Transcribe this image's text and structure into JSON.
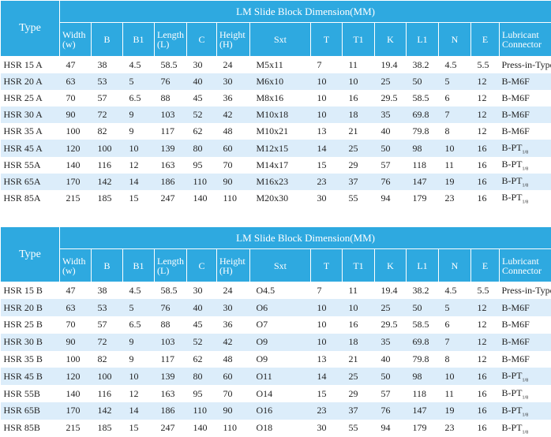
{
  "title": "LM Slide Block Dimension(MM)",
  "columns": [
    "Type",
    [
      "Width",
      "(w)"
    ],
    "B",
    "B1",
    [
      "Length",
      "(L)"
    ],
    "C",
    [
      "Height",
      "(H)"
    ],
    "Sxt",
    "T",
    "T1",
    "K",
    "L1",
    "N",
    "E",
    [
      "Lubricant",
      "Connector"
    ]
  ],
  "tables": [
    {
      "rows": [
        [
          "HSR 15 A",
          "47",
          "38",
          "4.5",
          "58.5",
          "30",
          "24",
          "M5x11",
          "7",
          "11",
          "19.4",
          "38.2",
          "4.5",
          "5.5",
          "Press-in-Type"
        ],
        [
          "HSR 20 A",
          "63",
          "53",
          "5",
          "76",
          "40",
          "30",
          "M6x10",
          "10",
          "10",
          "25",
          "50",
          "5",
          "12",
          "B-M6F"
        ],
        [
          "HSR 25 A",
          "70",
          "57",
          "6.5",
          "88",
          "45",
          "36",
          "M8x16",
          "10",
          "16",
          "29.5",
          "58.5",
          "6",
          "12",
          "B-M6F"
        ],
        [
          "HSR 30 A",
          "90",
          "72",
          "9",
          "103",
          "52",
          "42",
          "M10x18",
          "10",
          "18",
          "35",
          "69.8",
          "7",
          "12",
          "B-M6F"
        ],
        [
          "HSR 35 A",
          "100",
          "82",
          "9",
          "117",
          "62",
          "48",
          "M10x21",
          "13",
          "21",
          "40",
          "79.8",
          "8",
          "12",
          "B-M6F"
        ],
        [
          "HSR 45 A",
          "120",
          "100",
          "10",
          "139",
          "80",
          "60",
          "M12x15",
          "14",
          "25",
          "50",
          "98",
          "10",
          "16",
          {
            "main": "B-PT",
            "sub": "1/8"
          }
        ],
        [
          "HSR 55A",
          "140",
          "116",
          "12",
          "163",
          "95",
          "70",
          "M14x17",
          "15",
          "29",
          "57",
          "118",
          "11",
          "16",
          {
            "main": "B-PT",
            "sub": "1/8"
          }
        ],
        [
          "HSR 65A",
          "170",
          "142",
          "14",
          "186",
          "110",
          "90",
          "M16x23",
          "23",
          "37",
          "76",
          "147",
          "19",
          "16",
          {
            "main": "B-PT",
            "sub": "1/8"
          }
        ],
        [
          "HSR 85A",
          "215",
          "185",
          "15",
          "247",
          "140",
          "110",
          "M20x30",
          "30",
          "55",
          "94",
          "179",
          "23",
          "16",
          {
            "main": "B-PT",
            "sub": "1/8"
          }
        ]
      ]
    },
    {
      "rows": [
        [
          "HSR 15 B",
          "47",
          "38",
          "4.5",
          "58.5",
          "30",
          "24",
          "O4.5",
          "7",
          "11",
          "19.4",
          "38.2",
          "4.5",
          "5.5",
          "Press-in-Type"
        ],
        [
          "HSR 20 B",
          "63",
          "53",
          "5",
          "76",
          "40",
          "30",
          "O6",
          "10",
          "10",
          "25",
          "50",
          "5",
          "12",
          "B-M6F"
        ],
        [
          "HSR 25 B",
          "70",
          "57",
          "6.5",
          "88",
          "45",
          "36",
          "O7",
          "10",
          "16",
          "29.5",
          "58.5",
          "6",
          "12",
          "B-M6F"
        ],
        [
          "HSR 30 B",
          "90",
          "72",
          "9",
          "103",
          "52",
          "42",
          "O9",
          "10",
          "18",
          "35",
          "69.8",
          "7",
          "12",
          "B-M6F"
        ],
        [
          "HSR 35 B",
          "100",
          "82",
          "9",
          "117",
          "62",
          "48",
          "O9",
          "13",
          "21",
          "40",
          "79.8",
          "8",
          "12",
          "B-M6F"
        ],
        [
          "HSR 45 B",
          "120",
          "100",
          "10",
          "139",
          "80",
          "60",
          "O11",
          "14",
          "25",
          "50",
          "98",
          "10",
          "16",
          {
            "main": "B-PT",
            "sub": "1/8"
          }
        ],
        [
          "HSR 55B",
          "140",
          "116",
          "12",
          "163",
          "95",
          "70",
          "O14",
          "15",
          "29",
          "57",
          "118",
          "11",
          "16",
          {
            "main": "B-PT",
            "sub": "1/8"
          }
        ],
        [
          "HSR 65B",
          "170",
          "142",
          "14",
          "186",
          "110",
          "90",
          "O16",
          "23",
          "37",
          "76",
          "147",
          "19",
          "16",
          {
            "main": "B-PT",
            "sub": "1/8"
          }
        ],
        [
          "HSR 85B",
          "215",
          "185",
          "15",
          "247",
          "140",
          "110",
          "O18",
          "30",
          "55",
          "94",
          "179",
          "23",
          "16",
          {
            "main": "B-PT",
            "sub": "1/8"
          }
        ]
      ]
    }
  ]
}
